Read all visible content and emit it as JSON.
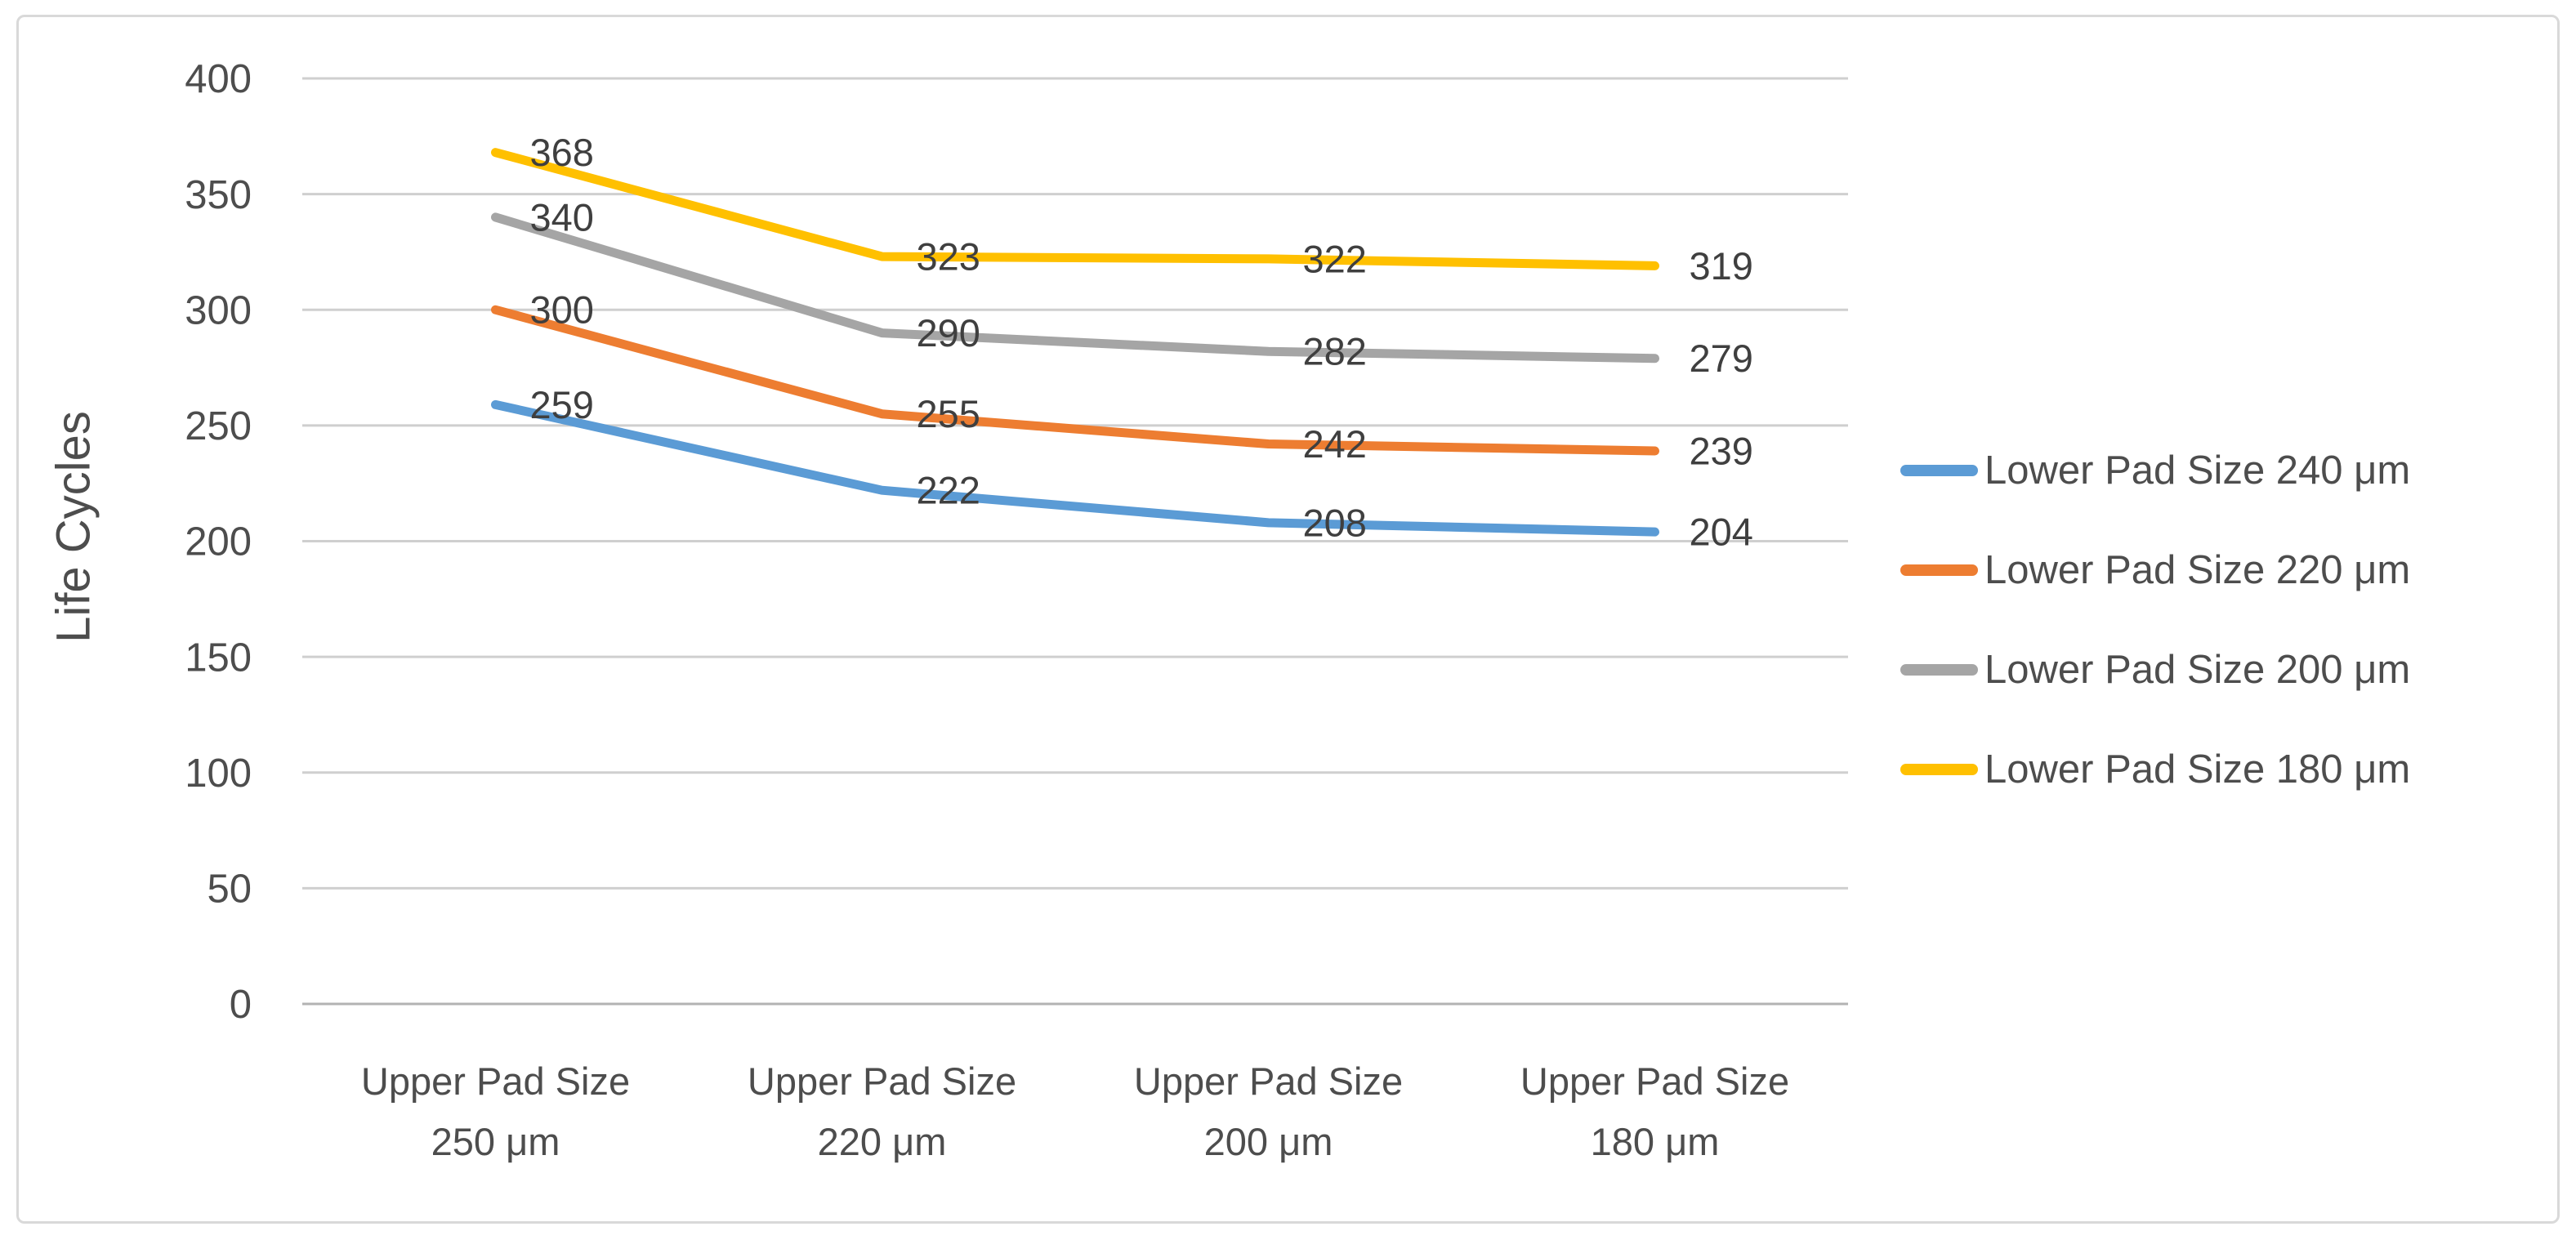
{
  "chart_data": {
    "type": "line",
    "ylabel": "Life Cycles",
    "xlabel": "",
    "ylim": [
      0,
      400
    ],
    "yticks": [
      0,
      50,
      100,
      150,
      200,
      250,
      300,
      350,
      400
    ],
    "grid": true,
    "legend_position": "right-center",
    "data_labels_position": "right-of-point",
    "categories": [
      [
        "Upper Pad Size",
        "250 μm"
      ],
      [
        "Upper Pad Size",
        "220 μm"
      ],
      [
        "Upper Pad Size",
        "200 μm"
      ],
      [
        "Upper Pad Size",
        "180 μm"
      ]
    ],
    "series": [
      {
        "name": "Lower Pad Size 240 μm",
        "color": "#5B9BD5",
        "values": [
          259,
          222,
          208,
          204
        ]
      },
      {
        "name": "Lower Pad Size 220 μm",
        "color": "#ED7D31",
        "values": [
          300,
          255,
          242,
          239
        ]
      },
      {
        "name": "Lower Pad Size 200 μm",
        "color": "#A5A5A5",
        "values": [
          340,
          290,
          282,
          279
        ]
      },
      {
        "name": "Lower Pad Size 180 μm",
        "color": "#FFC000",
        "values": [
          368,
          323,
          322,
          319
        ]
      }
    ]
  },
  "style": {
    "grid_color": "#CFCFCF",
    "axis_line_color": "#B3B3B3",
    "frame_border_color": "#D9D9D9",
    "tick_text_color": "#4D4D4D",
    "data_label_color": "#3F3F3F",
    "background": "#FFFFFF"
  }
}
